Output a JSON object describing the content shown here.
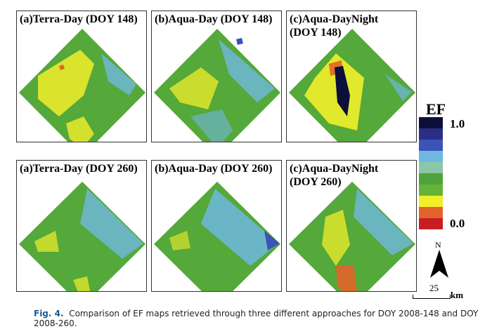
{
  "panels": [
    {
      "title": "(a)Terra-Day (DOY 148)"
    },
    {
      "title": "(b)Aqua-Day (DOY 148)"
    },
    {
      "title": "(c)Aqua-DayNight\n(DOY 148)"
    },
    {
      "title": "(a)Terra-Day (DOY 260)"
    },
    {
      "title": "(b)Aqua-Day (DOY 260)"
    },
    {
      "title": "(c)Aqua-DayNight\n(DOY 260)"
    }
  ],
  "legend": {
    "title": "EF",
    "max_label": "1.0",
    "min_label": "0.0",
    "colors": [
      "#0b0f3a",
      "#2a2f86",
      "#3c53b8",
      "#6fb8e0",
      "#8cc5a8",
      "#4fa33c",
      "#64b438",
      "#f2ee2a",
      "#e2642a",
      "#c81e23"
    ]
  },
  "north_label": "N",
  "scale_value": "25",
  "scale_unit": "km",
  "caption": {
    "label": "Fig. 4.",
    "text": "Comparison of EF maps retrieved through three different approaches for DOY 2008-148 and DOY 2008-260."
  }
}
